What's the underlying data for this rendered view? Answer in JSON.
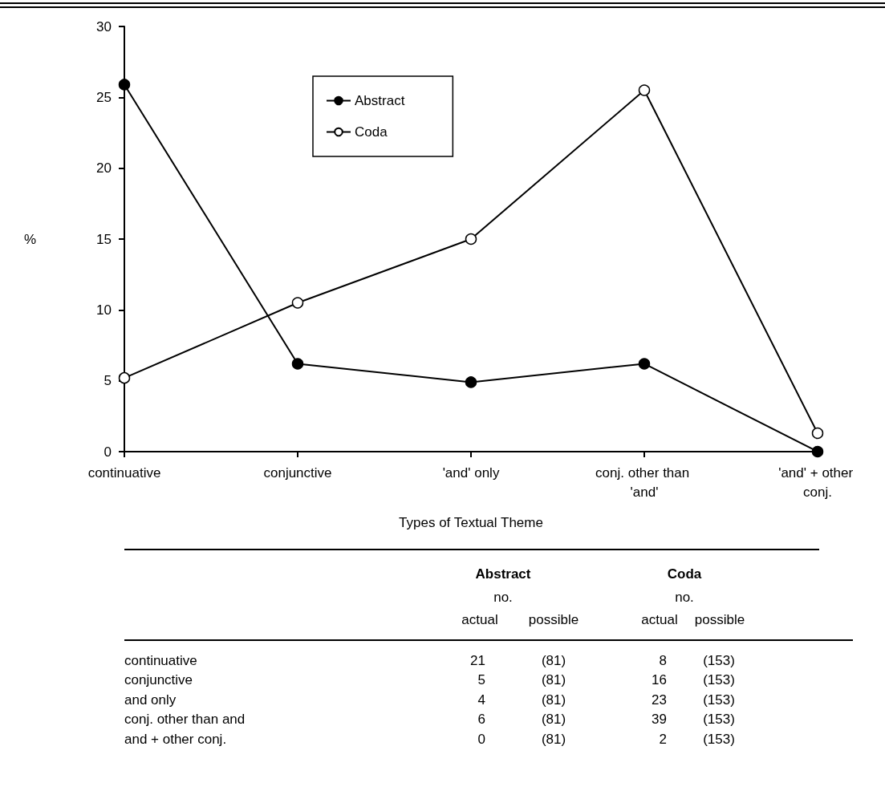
{
  "chart_data": {
    "type": "line",
    "xlabel": "Types of Textual Theme",
    "ylabel": "%",
    "categories": [
      "continuative",
      "conjunctive",
      "'and' only",
      "conj. other than 'and'",
      "'and' + other conj."
    ],
    "series": [
      {
        "name": "Abstract",
        "color": "#000000",
        "values": [
          25.9,
          6.2,
          4.9,
          6.2,
          0
        ]
      },
      {
        "name": "Coda",
        "color": "#000000",
        "values": [
          5.2,
          10.5,
          15.0,
          25.5,
          1.3
        ]
      }
    ],
    "ylim": [
      0,
      30
    ],
    "yticks": [
      0,
      5,
      10,
      15,
      20,
      25,
      30
    ],
    "grid": false,
    "legend": "top",
    "marker": "circle",
    "line_style": "solid",
    "annotations": [
      "Abstract",
      "Coda",
      "no.",
      "no.",
      "actual",
      "possible",
      "actual",
      "possible",
      "continuative",
      "21",
      "(81)",
      "8",
      "(153)",
      "conjunctive",
      "5",
      "(81)",
      "16",
      "(153)",
      "and only",
      "4",
      "(81)",
      "23",
      "(153)",
      "conj. other than and",
      "6",
      "(81)",
      "39",
      "(153)",
      "and + other conj.",
      "0",
      "(81)",
      "2",
      "(153)"
    ]
  }
}
